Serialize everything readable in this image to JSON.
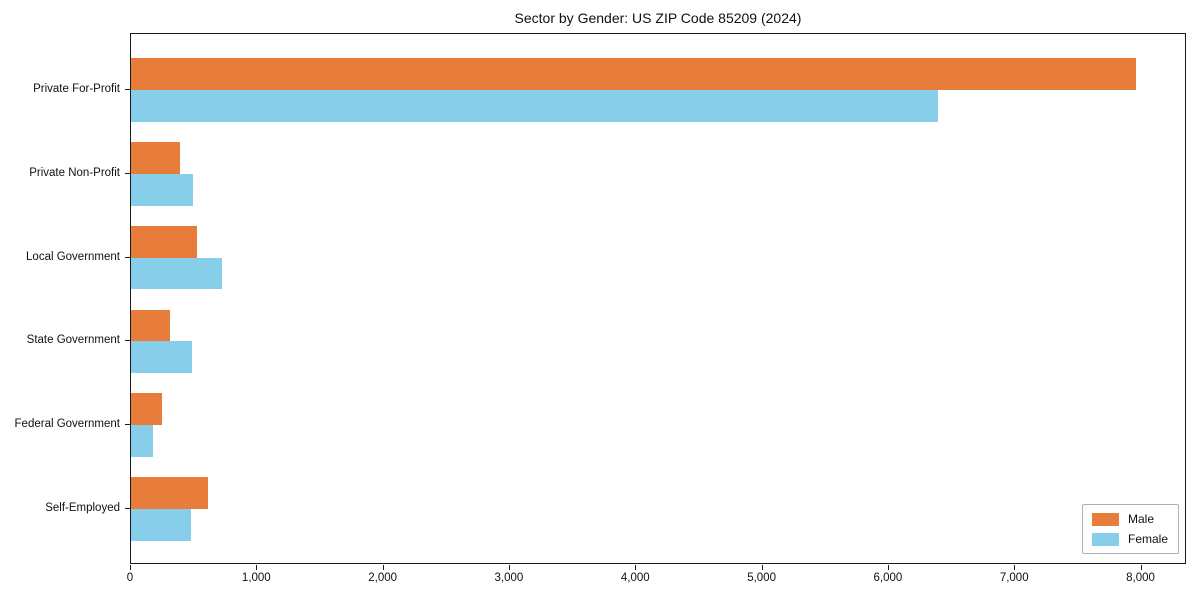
{
  "title": "Sector by Gender: US ZIP Code 85209 (2024)",
  "chart_data": {
    "type": "bar",
    "orientation": "horizontal",
    "title": "Sector by Gender: US ZIP Code 85209 (2024)",
    "categories": [
      "Private For-Profit",
      "Private Non-Profit",
      "Local Government",
      "State Government",
      "Federal Government",
      "Self-Employed"
    ],
    "series": [
      {
        "name": "Male",
        "color": "#E87D3B",
        "values": [
          7960,
          390,
          520,
          310,
          245,
          610
        ]
      },
      {
        "name": "Female",
        "color": "#87CEEB",
        "values": [
          6390,
          490,
          720,
          480,
          175,
          475
        ]
      }
    ],
    "xlabel": "",
    "ylabel": "",
    "xlim": [
      0,
      8360
    ],
    "x_ticks": [
      0,
      1000,
      2000,
      3000,
      4000,
      5000,
      6000,
      7000,
      8000
    ],
    "x_tick_labels": [
      "0",
      "1,000",
      "2,000",
      "3,000",
      "4,000",
      "5,000",
      "6,000",
      "7,000",
      "8,000"
    ],
    "grid": false,
    "legend_position": "lower right"
  },
  "legend": {
    "items": [
      {
        "label": "Male",
        "color": "#E87D3B"
      },
      {
        "label": "Female",
        "color": "#87CEEB"
      }
    ]
  }
}
